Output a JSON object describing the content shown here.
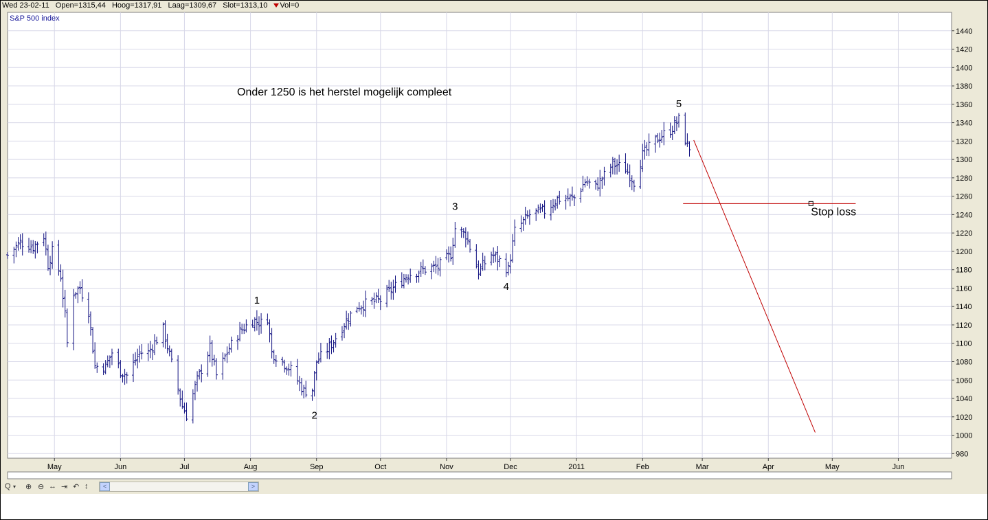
{
  "header": {
    "date": "Wed 23-02-11",
    "open": "Open=1315,44",
    "high": "Hoog=1317,91",
    "low": "Laag=1309,67",
    "close": "Slot=1313,10",
    "volume": "Vol=0"
  },
  "chart_data": {
    "type": "ohlc-bar",
    "title": "S&P 500 index",
    "annotation": "Onder 1250 is het herstel mogelijk compleet",
    "ylim": [
      975,
      1460
    ],
    "y_ticks": [
      980,
      1000,
      1020,
      1040,
      1060,
      1080,
      1100,
      1120,
      1140,
      1160,
      1180,
      1200,
      1220,
      1240,
      1260,
      1280,
      1300,
      1320,
      1340,
      1360,
      1380,
      1400,
      1420,
      1440
    ],
    "x_ticks": [
      "May",
      "Jun",
      "Jul",
      "Aug",
      "Sep",
      "Oct",
      "Nov",
      "Dec",
      "2011",
      "Feb",
      "Mar",
      "Apr",
      "May",
      "Jun"
    ],
    "x_tick_dates": [
      "2010-05-01",
      "2010-06-01",
      "2010-07-01",
      "2010-08-01",
      "2010-09-01",
      "2010-10-01",
      "2010-11-01",
      "2010-12-01",
      "2011-01-01",
      "2011-02-01",
      "2011-03-01",
      "2011-04-01",
      "2011-05-01",
      "2011-06-01"
    ],
    "x_range": [
      "2010-04-09",
      "2011-06-26"
    ],
    "series_path": [
      [
        "2010-04-09",
        1196
      ],
      [
        "2010-04-15",
        1210
      ],
      [
        "2010-04-21",
        1205
      ],
      [
        "2010-04-26",
        1217
      ],
      [
        "2010-04-28",
        1186
      ],
      [
        "2010-04-30",
        1200
      ],
      [
        "2010-05-04",
        1173
      ],
      [
        "2010-05-06",
        1130
      ],
      [
        "2010-05-07",
        1100
      ],
      [
        "2010-05-10",
        1155
      ],
      [
        "2010-05-13",
        1160
      ],
      [
        "2010-05-17",
        1135
      ],
      [
        "2010-05-20",
        1075
      ],
      [
        "2010-05-25",
        1075
      ],
      [
        "2010-05-28",
        1090
      ],
      [
        "2010-06-01",
        1070
      ],
      [
        "2010-06-04",
        1065
      ],
      [
        "2010-06-10",
        1090
      ],
      [
        "2010-06-14",
        1090
      ],
      [
        "2010-06-21",
        1115
      ],
      [
        "2010-06-25",
        1078
      ],
      [
        "2010-06-30",
        1032
      ],
      [
        "2010-07-02",
        1022
      ],
      [
        "2010-07-07",
        1060
      ],
      [
        "2010-07-13",
        1095
      ],
      [
        "2010-07-16",
        1065
      ],
      [
        "2010-07-22",
        1095
      ],
      [
        "2010-07-27",
        1113
      ],
      [
        "2010-08-02",
        1125
      ],
      [
        "2010-08-06",
        1122
      ],
      [
        "2010-08-09",
        1128
      ],
      [
        "2010-08-11",
        1090
      ],
      [
        "2010-08-16",
        1080
      ],
      [
        "2010-08-20",
        1071
      ],
      [
        "2010-08-26",
        1048
      ],
      [
        "2010-08-30",
        1050
      ],
      [
        "2010-09-01",
        1080
      ],
      [
        "2010-09-08",
        1099
      ],
      [
        "2010-09-15",
        1125
      ],
      [
        "2010-09-20",
        1140
      ],
      [
        "2010-09-27",
        1145
      ],
      [
        "2010-10-01",
        1147
      ],
      [
        "2010-10-07",
        1160
      ],
      [
        "2010-10-14",
        1175
      ],
      [
        "2010-10-21",
        1180
      ],
      [
        "2010-10-28",
        1183
      ],
      [
        "2010-11-03",
        1197
      ],
      [
        "2010-11-05",
        1225
      ],
      [
        "2010-11-10",
        1218
      ],
      [
        "2010-11-16",
        1178
      ],
      [
        "2010-11-22",
        1197
      ],
      [
        "2010-11-26",
        1190
      ],
      [
        "2010-11-30",
        1180
      ],
      [
        "2010-12-03",
        1222
      ],
      [
        "2010-12-10",
        1240
      ],
      [
        "2010-12-17",
        1244
      ],
      [
        "2010-12-23",
        1257
      ],
      [
        "2010-12-31",
        1258
      ],
      [
        "2011-01-05",
        1276
      ],
      [
        "2011-01-10",
        1270
      ],
      [
        "2011-01-18",
        1295
      ],
      [
        "2011-01-24",
        1290
      ],
      [
        "2011-01-28",
        1276
      ],
      [
        "2011-02-01",
        1305
      ],
      [
        "2011-02-08",
        1323
      ],
      [
        "2011-02-14",
        1332
      ],
      [
        "2011-02-18",
        1343
      ],
      [
        "2011-02-22",
        1315
      ],
      [
        "2011-02-23",
        1313
      ]
    ],
    "wave_labels": [
      {
        "text": "1",
        "date": "2010-08-04",
        "price": 1143
      },
      {
        "text": "2",
        "date": "2010-08-31",
        "price": 1018
      },
      {
        "text": "3",
        "date": "2010-11-05",
        "price": 1245
      },
      {
        "text": "4",
        "date": "2010-11-29",
        "price": 1158
      },
      {
        "text": "5",
        "date": "2011-02-18",
        "price": 1357
      }
    ],
    "stop_loss": {
      "label": "Stop loss",
      "price": 1252,
      "from": "2011-02-20",
      "to": "2011-05-12",
      "marker_date": "2011-04-21"
    },
    "projection": {
      "from": [
        "2011-02-25",
        1321
      ],
      "to": [
        "2011-04-23",
        1003
      ]
    },
    "colors": {
      "bars": "#101080",
      "lines": "#c00000",
      "grid": "#d8d8e8"
    }
  },
  "toolbar": {
    "zoom": "Q",
    "scroll_left": "<",
    "scroll_right": ">"
  }
}
